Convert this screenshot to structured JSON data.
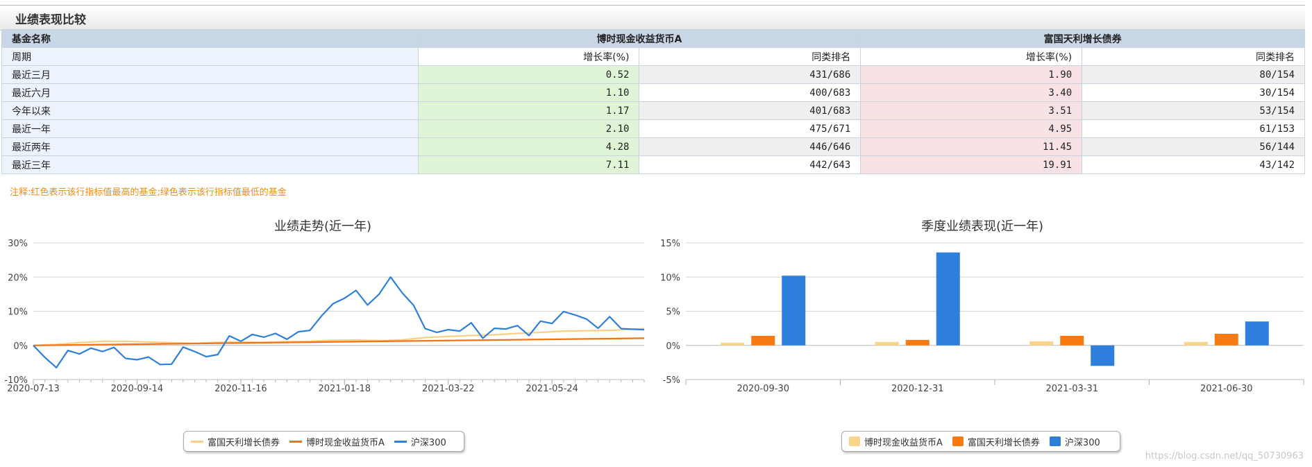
{
  "section": {
    "title": "业绩表现比较"
  },
  "table": {
    "fund_label": "基金名称",
    "fund_a": "博时现金收益货币A",
    "fund_b": "富国天利增长债券",
    "period_label": "周期",
    "growth_label": "增长率(%)",
    "rank_label": "同类排名",
    "rows": [
      {
        "period": "最近三月",
        "a_growth": "0.52",
        "a_rank": "431/686",
        "b_growth": "1.90",
        "b_rank": "80/154"
      },
      {
        "period": "最近六月",
        "a_growth": "1.10",
        "a_rank": "400/683",
        "b_growth": "3.40",
        "b_rank": "30/154"
      },
      {
        "period": "今年以来",
        "a_growth": "1.17",
        "a_rank": "401/683",
        "b_growth": "3.51",
        "b_rank": "53/154"
      },
      {
        "period": "最近一年",
        "a_growth": "2.10",
        "a_rank": "475/671",
        "b_growth": "4.95",
        "b_rank": "61/153"
      },
      {
        "period": "最近两年",
        "a_growth": "4.28",
        "a_rank": "446/646",
        "b_growth": "11.45",
        "b_rank": "56/144"
      },
      {
        "period": "最近三年",
        "a_growth": "7.11",
        "a_rank": "442/643",
        "b_growth": "19.91",
        "b_rank": "43/142"
      }
    ]
  },
  "note": "注释:红色表示该行指标值最高的基金;绿色表示该行指标值最低的基金",
  "colors": {
    "fuguo_line": "#f9cf86",
    "boshi_line": "#f07316",
    "hs300": "#2e7fdc",
    "boshi_bar": "#f9d48b",
    "fuguo_bar": "#f77a12"
  },
  "chart_data": [
    {
      "type": "line",
      "title": "业绩走势(近一年)",
      "y_ticks": [
        "30%",
        "20%",
        "10%",
        "0%",
        "-10%"
      ],
      "ylim": [
        -10,
        30
      ],
      "x_tick_labels": [
        "2020-07-13",
        "2020-09-14",
        "2020-11-16",
        "2021-01-18",
        "2021-03-22",
        "2021-05-24"
      ],
      "x_range": [
        "2020-07-13",
        "2021-07-19"
      ],
      "legend_position": "bottom",
      "series": [
        {
          "name": "富国天利增长债券",
          "color": "#f9cf86",
          "points": [
            [
              "2020-07-13",
              0
            ],
            [
              "2020-07-27",
              0.3
            ],
            [
              "2020-08-10",
              0.8
            ],
            [
              "2020-08-24",
              1.2
            ],
            [
              "2020-09-07",
              1.2
            ],
            [
              "2020-09-21",
              1.0
            ],
            [
              "2020-10-05",
              0.8
            ],
            [
              "2020-10-19",
              0.6
            ],
            [
              "2020-11-02",
              0.9
            ],
            [
              "2020-11-16",
              1.0
            ],
            [
              "2020-11-30",
              0.9
            ],
            [
              "2020-12-14",
              1.1
            ],
            [
              "2020-12-28",
              1.2
            ],
            [
              "2021-01-11",
              1.5
            ],
            [
              "2021-01-25",
              1.6
            ],
            [
              "2021-02-08",
              1.4
            ],
            [
              "2021-02-22",
              1.6
            ],
            [
              "2021-03-08",
              2.3
            ],
            [
              "2021-03-22",
              2.6
            ],
            [
              "2021-04-05",
              2.9
            ],
            [
              "2021-04-19",
              3.1
            ],
            [
              "2021-05-03",
              3.5
            ],
            [
              "2021-05-17",
              3.8
            ],
            [
              "2021-05-31",
              4.2
            ],
            [
              "2021-06-14",
              4.3
            ],
            [
              "2021-06-28",
              4.4
            ],
            [
              "2021-07-12",
              4.7
            ],
            [
              "2021-07-19",
              4.9
            ]
          ]
        },
        {
          "name": "博时现金收益货币A",
          "color": "#f07316",
          "points": [
            [
              "2020-07-13",
              0
            ],
            [
              "2021-07-19",
              2.1
            ]
          ]
        },
        {
          "name": "沪深300",
          "color": "#2e7fdc",
          "points": [
            [
              "2020-07-13",
              0
            ],
            [
              "2020-07-20",
              -3.5
            ],
            [
              "2020-07-27",
              -6.5
            ],
            [
              "2020-08-03",
              -1.5
            ],
            [
              "2020-08-10",
              -2.5
            ],
            [
              "2020-08-17",
              -0.8
            ],
            [
              "2020-08-24",
              -1.8
            ],
            [
              "2020-08-31",
              -0.6
            ],
            [
              "2020-09-07",
              -3.8
            ],
            [
              "2020-09-14",
              -4.2
            ],
            [
              "2020-09-21",
              -3.4
            ],
            [
              "2020-09-28",
              -5.6
            ],
            [
              "2020-10-05",
              -5.5
            ],
            [
              "2020-10-12",
              -0.5
            ],
            [
              "2020-10-19",
              -1.8
            ],
            [
              "2020-10-26",
              -3.3
            ],
            [
              "2020-11-02",
              -2.7
            ],
            [
              "2020-11-09",
              2.8
            ],
            [
              "2020-11-16",
              1.2
            ],
            [
              "2020-11-23",
              3.2
            ],
            [
              "2020-11-30",
              2.4
            ],
            [
              "2020-12-07",
              3.5
            ],
            [
              "2020-12-14",
              1.8
            ],
            [
              "2020-12-21",
              4.0
            ],
            [
              "2020-12-28",
              4.4
            ],
            [
              "2021-01-04",
              8.6
            ],
            [
              "2021-01-11",
              12.2
            ],
            [
              "2021-01-18",
              13.8
            ],
            [
              "2021-01-25",
              16.1
            ],
            [
              "2021-02-01",
              11.8
            ],
            [
              "2021-02-08",
              15.0
            ],
            [
              "2021-02-15",
              20.0
            ],
            [
              "2021-02-22",
              15.4
            ],
            [
              "2021-03-01",
              11.7
            ],
            [
              "2021-03-08",
              4.9
            ],
            [
              "2021-03-15",
              3.8
            ],
            [
              "2021-03-22",
              4.6
            ],
            [
              "2021-03-29",
              4.2
            ],
            [
              "2021-04-05",
              6.6
            ],
            [
              "2021-04-12",
              2.1
            ],
            [
              "2021-04-19",
              5.0
            ],
            [
              "2021-04-26",
              4.8
            ],
            [
              "2021-05-03",
              5.8
            ],
            [
              "2021-05-10",
              2.9
            ],
            [
              "2021-05-17",
              7.1
            ],
            [
              "2021-05-24",
              6.4
            ],
            [
              "2021-05-31",
              9.9
            ],
            [
              "2021-06-07",
              8.9
            ],
            [
              "2021-06-14",
              7.7
            ],
            [
              "2021-06-21",
              5.0
            ],
            [
              "2021-06-28",
              8.4
            ],
            [
              "2021-07-05",
              4.9
            ],
            [
              "2021-07-19",
              4.6
            ]
          ]
        }
      ]
    },
    {
      "type": "bar",
      "title": "季度业绩表现(近一年)",
      "y_ticks": [
        "15%",
        "10%",
        "5%",
        "0%",
        "-5%"
      ],
      "ylim": [
        -5,
        15
      ],
      "categories": [
        "2020-09-30",
        "2020-12-31",
        "2021-03-31",
        "2021-06-30"
      ],
      "legend_position": "bottom",
      "series": [
        {
          "name": "博时现金收益货币A",
          "color": "#f9d48b",
          "values": [
            0.4,
            0.5,
            0.6,
            0.5
          ]
        },
        {
          "name": "富国天利增长债券",
          "color": "#f77a12",
          "values": [
            1.4,
            0.8,
            1.4,
            1.7
          ]
        },
        {
          "name": "沪深300",
          "color": "#2e7fdc",
          "values": [
            10.2,
            13.6,
            -3.0,
            3.5
          ]
        }
      ]
    }
  ],
  "watermark": "https://blog.csdn.net/qq_50730963"
}
